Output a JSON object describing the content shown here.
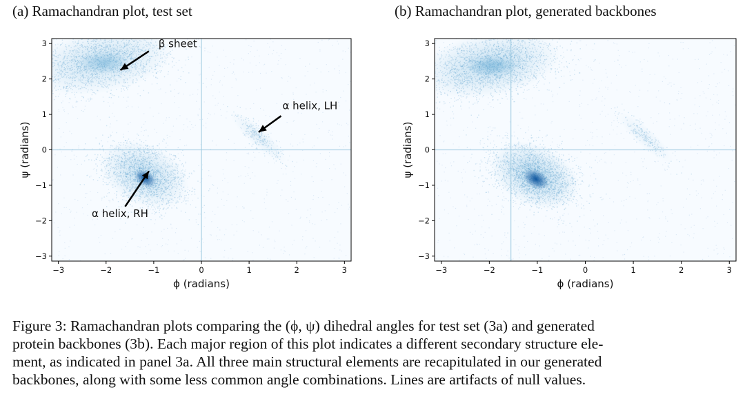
{
  "panels": [
    {
      "id": "a",
      "title": "(a) Ramachandran plot, test set",
      "annotations": [
        {
          "label": "β sheet",
          "name": "beta-sheet"
        },
        {
          "label": "α helix, LH",
          "name": "alpha-helix-lh"
        },
        {
          "label": "α helix, RH",
          "name": "alpha-helix-rh"
        }
      ]
    },
    {
      "id": "b",
      "title": "(b) Ramachandran plot, generated backbones",
      "annotations": []
    }
  ],
  "chart_data": [
    {
      "type": "heatmap",
      "title": "(a) Ramachandran plot, test set",
      "xlabel": "ϕ (radians)",
      "ylabel": "ψ (radians)",
      "xlim": [
        -3.14,
        3.14
      ],
      "ylim": [
        -3.14,
        3.14
      ],
      "xticks": [
        -3,
        -2,
        -1,
        0,
        1,
        2,
        3
      ],
      "yticks": [
        -3,
        -2,
        -1,
        0,
        1,
        2,
        3
      ],
      "xtick_labels": [
        "−3",
        "−2",
        "−1",
        "0",
        "1",
        "2",
        "3"
      ],
      "ytick_labels": [
        "−3",
        "−2",
        "−1",
        "0",
        "1",
        "2",
        "3"
      ],
      "density_clusters": [
        {
          "region": "β sheet",
          "phi": -2.1,
          "psi": 2.5,
          "weight": 0.75
        },
        {
          "region": "α helix, RH",
          "phi": -1.2,
          "psi": -0.7,
          "weight": 0.85
        },
        {
          "region": "α helix, LH",
          "phi": 1.2,
          "psi": 0.35,
          "weight": 0.35
        }
      ],
      "null_value_lines": [
        {
          "axis": "phi",
          "value": 0
        },
        {
          "axis": "psi",
          "value": 0
        }
      ],
      "annotations": [
        {
          "text": "β sheet",
          "text_at": [
            -0.9,
            2.9
          ],
          "arrow_to": [
            -1.7,
            2.25
          ]
        },
        {
          "text": "α helix, LH",
          "text_at": [
            1.7,
            1.15
          ],
          "arrow_to": [
            1.2,
            0.5
          ]
        },
        {
          "text": "α helix, RH",
          "text_at": [
            -2.3,
            -1.9
          ],
          "arrow_to": [
            -1.1,
            -0.6
          ]
        }
      ]
    },
    {
      "type": "heatmap",
      "title": "(b) Ramachandran plot, generated backbones",
      "xlabel": "ϕ (radians)",
      "ylabel": "ψ (radians)",
      "xlim": [
        -3.14,
        3.14
      ],
      "ylim": [
        -3.14,
        3.14
      ],
      "xticks": [
        -3,
        -2,
        -1,
        0,
        1,
        2,
        3
      ],
      "yticks": [
        -3,
        -2,
        -1,
        0,
        1,
        2,
        3
      ],
      "xtick_labels": [
        "−3",
        "−2",
        "−1",
        "0",
        "1",
        "2",
        "3"
      ],
      "ytick_labels": [
        "−3",
        "−2",
        "−1",
        "0",
        "1",
        "2",
        "3"
      ],
      "density_clusters": [
        {
          "region": "β sheet",
          "phi": -2.0,
          "psi": 2.4,
          "weight": 0.85
        },
        {
          "region": "α helix, RH",
          "phi": -1.05,
          "psi": -0.72,
          "weight": 1.0
        },
        {
          "region": "α helix, LH",
          "phi": 1.25,
          "psi": 0.35,
          "weight": 0.3
        }
      ],
      "null_value_lines": [
        {
          "axis": "psi",
          "value": 0
        },
        {
          "axis": "phi",
          "value": -1.55
        }
      ],
      "annotations": []
    }
  ],
  "caption": {
    "lines": [
      "Figure 3: Ramachandran plots comparing the (ϕ, ψ) dihedral angles for test set (3a) and generated",
      "protein backbones (3b). Each major region of this plot indicates a different secondary structure ele-",
      "ment, as indicated in panel 3a. All three main structural elements are recapitulated in our generated",
      "backbones, along with some less common angle combinations. Lines are artifacts of null values."
    ]
  },
  "colors": {
    "density_light": "#dcebf7",
    "density_mid": "#6aaed6",
    "density_dark": "#08519c",
    "axis": "#000000",
    "text": "#111111"
  }
}
